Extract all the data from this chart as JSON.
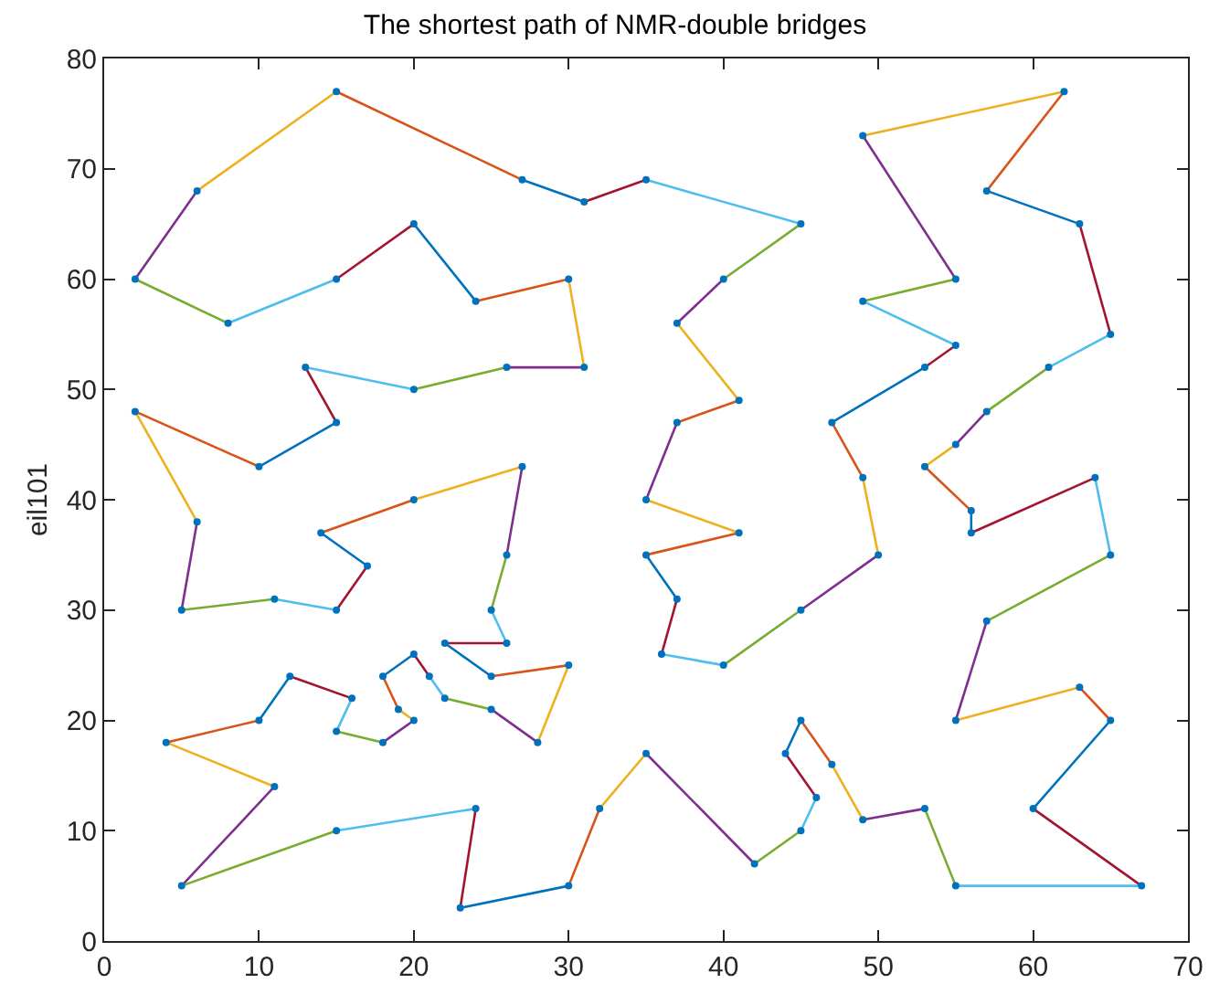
{
  "chart_data": {
    "type": "line",
    "title": "The shortest path of NMR-double bridges",
    "ylabel": "eil101",
    "xlim": [
      0,
      70
    ],
    "xticks": [
      0,
      10,
      20,
      30,
      40,
      50,
      60,
      70
    ],
    "ylim": [
      0,
      80
    ],
    "yticks": [
      0,
      10,
      20,
      30,
      40,
      50,
      60,
      70,
      80
    ],
    "grid": false,
    "line_style": "solid",
    "series": [
      {
        "x": [
          37,
          41
        ],
        "values": [
          47,
          49
        ],
        "color": "#D95319"
      },
      {
        "x": [
          41,
          37
        ],
        "values": [
          49,
          56
        ],
        "color": "#EDB120"
      },
      {
        "x": [
          37,
          40
        ],
        "values": [
          56,
          60
        ],
        "color": "#7E2F8E"
      },
      {
        "x": [
          40,
          45
        ],
        "values": [
          60,
          65
        ],
        "color": "#77AC30"
      },
      {
        "x": [
          45,
          35
        ],
        "values": [
          65,
          69
        ],
        "color": "#4DBEEE"
      },
      {
        "x": [
          35,
          31
        ],
        "values": [
          69,
          67
        ],
        "color": "#A2142F"
      },
      {
        "x": [
          31,
          27
        ],
        "values": [
          67,
          69
        ],
        "color": "#0072BD"
      },
      {
        "x": [
          27,
          15
        ],
        "values": [
          69,
          77
        ],
        "color": "#D95319"
      },
      {
        "x": [
          15,
          6
        ],
        "values": [
          77,
          68
        ],
        "color": "#EDB120"
      },
      {
        "x": [
          6,
          2
        ],
        "values": [
          68,
          60
        ],
        "color": "#7E2F8E"
      },
      {
        "x": [
          2,
          8
        ],
        "values": [
          60,
          56
        ],
        "color": "#77AC30"
      },
      {
        "x": [
          8,
          15
        ],
        "values": [
          56,
          60
        ],
        "color": "#4DBEEE"
      },
      {
        "x": [
          15,
          20
        ],
        "values": [
          60,
          65
        ],
        "color": "#A2142F"
      },
      {
        "x": [
          20,
          24
        ],
        "values": [
          65,
          58
        ],
        "color": "#0072BD"
      },
      {
        "x": [
          24,
          30
        ],
        "values": [
          58,
          60
        ],
        "color": "#D95319"
      },
      {
        "x": [
          30,
          31
        ],
        "values": [
          60,
          52
        ],
        "color": "#EDB120"
      },
      {
        "x": [
          31,
          26
        ],
        "values": [
          52,
          52
        ],
        "color": "#7E2F8E"
      },
      {
        "x": [
          26,
          20
        ],
        "values": [
          52,
          50
        ],
        "color": "#77AC30"
      },
      {
        "x": [
          20,
          13
        ],
        "values": [
          50,
          52
        ],
        "color": "#4DBEEE"
      },
      {
        "x": [
          13,
          15
        ],
        "values": [
          52,
          47
        ],
        "color": "#A2142F"
      },
      {
        "x": [
          15,
          10
        ],
        "values": [
          47,
          43
        ],
        "color": "#0072BD"
      },
      {
        "x": [
          10,
          2
        ],
        "values": [
          43,
          48
        ],
        "color": "#D95319"
      },
      {
        "x": [
          2,
          6
        ],
        "values": [
          48,
          38
        ],
        "color": "#EDB120"
      },
      {
        "x": [
          6,
          5
        ],
        "values": [
          38,
          30
        ],
        "color": "#7E2F8E"
      },
      {
        "x": [
          5,
          11
        ],
        "values": [
          30,
          31
        ],
        "color": "#77AC30"
      },
      {
        "x": [
          11,
          15
        ],
        "values": [
          31,
          30
        ],
        "color": "#4DBEEE"
      },
      {
        "x": [
          15,
          17
        ],
        "values": [
          30,
          34
        ],
        "color": "#A2142F"
      },
      {
        "x": [
          17,
          14
        ],
        "values": [
          34,
          37
        ],
        "color": "#0072BD"
      },
      {
        "x": [
          14,
          20
        ],
        "values": [
          37,
          40
        ],
        "color": "#D95319"
      },
      {
        "x": [
          20,
          27
        ],
        "values": [
          40,
          43
        ],
        "color": "#EDB120"
      },
      {
        "x": [
          27,
          26
        ],
        "values": [
          43,
          35
        ],
        "color": "#7E2F8E"
      },
      {
        "x": [
          26,
          25
        ],
        "values": [
          35,
          30
        ],
        "color": "#77AC30"
      },
      {
        "x": [
          25,
          26
        ],
        "values": [
          30,
          27
        ],
        "color": "#4DBEEE"
      },
      {
        "x": [
          26,
          22
        ],
        "values": [
          27,
          27
        ],
        "color": "#A2142F"
      },
      {
        "x": [
          22,
          25
        ],
        "values": [
          27,
          24
        ],
        "color": "#0072BD"
      },
      {
        "x": [
          25,
          30
        ],
        "values": [
          24,
          25
        ],
        "color": "#D95319"
      },
      {
        "x": [
          30,
          28
        ],
        "values": [
          25,
          18
        ],
        "color": "#EDB120"
      },
      {
        "x": [
          28,
          25
        ],
        "values": [
          18,
          21
        ],
        "color": "#7E2F8E"
      },
      {
        "x": [
          25,
          22
        ],
        "values": [
          21,
          22
        ],
        "color": "#77AC30"
      },
      {
        "x": [
          22,
          21
        ],
        "values": [
          22,
          24
        ],
        "color": "#4DBEEE"
      },
      {
        "x": [
          21,
          20
        ],
        "values": [
          24,
          26
        ],
        "color": "#A2142F"
      },
      {
        "x": [
          20,
          18
        ],
        "values": [
          26,
          24
        ],
        "color": "#0072BD"
      },
      {
        "x": [
          18,
          19
        ],
        "values": [
          24,
          21
        ],
        "color": "#D95319"
      },
      {
        "x": [
          19,
          20
        ],
        "values": [
          21,
          20
        ],
        "color": "#EDB120"
      },
      {
        "x": [
          20,
          18
        ],
        "values": [
          20,
          18
        ],
        "color": "#7E2F8E"
      },
      {
        "x": [
          18,
          15
        ],
        "values": [
          18,
          19
        ],
        "color": "#77AC30"
      },
      {
        "x": [
          15,
          16
        ],
        "values": [
          19,
          22
        ],
        "color": "#4DBEEE"
      },
      {
        "x": [
          16,
          12
        ],
        "values": [
          22,
          24
        ],
        "color": "#A2142F"
      },
      {
        "x": [
          12,
          10
        ],
        "values": [
          24,
          20
        ],
        "color": "#0072BD"
      },
      {
        "x": [
          10,
          4
        ],
        "values": [
          20,
          18
        ],
        "color": "#D95319"
      },
      {
        "x": [
          4,
          11
        ],
        "values": [
          18,
          14
        ],
        "color": "#EDB120"
      },
      {
        "x": [
          11,
          5
        ],
        "values": [
          14,
          5
        ],
        "color": "#7E2F8E"
      },
      {
        "x": [
          5,
          15
        ],
        "values": [
          5,
          10
        ],
        "color": "#77AC30"
      },
      {
        "x": [
          15,
          24
        ],
        "values": [
          10,
          12
        ],
        "color": "#4DBEEE"
      },
      {
        "x": [
          24,
          23
        ],
        "values": [
          12,
          3
        ],
        "color": "#A2142F"
      },
      {
        "x": [
          23,
          30
        ],
        "values": [
          3,
          5
        ],
        "color": "#0072BD"
      },
      {
        "x": [
          30,
          32
        ],
        "values": [
          5,
          12
        ],
        "color": "#D95319"
      },
      {
        "x": [
          32,
          35
        ],
        "values": [
          12,
          17
        ],
        "color": "#EDB120"
      },
      {
        "x": [
          35,
          42
        ],
        "values": [
          17,
          7
        ],
        "color": "#7E2F8E"
      },
      {
        "x": [
          42,
          45
        ],
        "values": [
          7,
          10
        ],
        "color": "#77AC30"
      },
      {
        "x": [
          45,
          46
        ],
        "values": [
          10,
          13
        ],
        "color": "#4DBEEE"
      },
      {
        "x": [
          46,
          44
        ],
        "values": [
          13,
          17
        ],
        "color": "#A2142F"
      },
      {
        "x": [
          44,
          45
        ],
        "values": [
          17,
          20
        ],
        "color": "#0072BD"
      },
      {
        "x": [
          45,
          47
        ],
        "values": [
          20,
          16
        ],
        "color": "#D95319"
      },
      {
        "x": [
          47,
          49
        ],
        "values": [
          16,
          11
        ],
        "color": "#EDB120"
      },
      {
        "x": [
          49,
          53
        ],
        "values": [
          11,
          12
        ],
        "color": "#7E2F8E"
      },
      {
        "x": [
          53,
          55
        ],
        "values": [
          12,
          5
        ],
        "color": "#77AC30"
      },
      {
        "x": [
          55,
          67
        ],
        "values": [
          5,
          5
        ],
        "color": "#4DBEEE"
      },
      {
        "x": [
          67,
          60
        ],
        "values": [
          5,
          12
        ],
        "color": "#A2142F"
      },
      {
        "x": [
          60,
          65
        ],
        "values": [
          12,
          20
        ],
        "color": "#0072BD"
      },
      {
        "x": [
          65,
          63
        ],
        "values": [
          20,
          23
        ],
        "color": "#D95319"
      },
      {
        "x": [
          63,
          55
        ],
        "values": [
          23,
          20
        ],
        "color": "#EDB120"
      },
      {
        "x": [
          55,
          57
        ],
        "values": [
          20,
          29
        ],
        "color": "#7E2F8E"
      },
      {
        "x": [
          57,
          65
        ],
        "values": [
          29,
          35
        ],
        "color": "#77AC30"
      },
      {
        "x": [
          65,
          64
        ],
        "values": [
          35,
          42
        ],
        "color": "#4DBEEE"
      },
      {
        "x": [
          64,
          56
        ],
        "values": [
          42,
          37
        ],
        "color": "#A2142F"
      },
      {
        "x": [
          56,
          56
        ],
        "values": [
          37,
          39
        ],
        "color": "#0072BD"
      },
      {
        "x": [
          56,
          53
        ],
        "values": [
          39,
          43
        ],
        "color": "#D95319"
      },
      {
        "x": [
          53,
          55
        ],
        "values": [
          43,
          45
        ],
        "color": "#EDB120"
      },
      {
        "x": [
          55,
          57
        ],
        "values": [
          45,
          48
        ],
        "color": "#7E2F8E"
      },
      {
        "x": [
          57,
          61
        ],
        "values": [
          48,
          52
        ],
        "color": "#77AC30"
      },
      {
        "x": [
          61,
          65
        ],
        "values": [
          52,
          55
        ],
        "color": "#4DBEEE"
      },
      {
        "x": [
          65,
          63
        ],
        "values": [
          55,
          65
        ],
        "color": "#A2142F"
      },
      {
        "x": [
          63,
          57
        ],
        "values": [
          65,
          68
        ],
        "color": "#0072BD"
      },
      {
        "x": [
          57,
          62
        ],
        "values": [
          68,
          77
        ],
        "color": "#D95319"
      },
      {
        "x": [
          62,
          49
        ],
        "values": [
          77,
          73
        ],
        "color": "#EDB120"
      },
      {
        "x": [
          49,
          55
        ],
        "values": [
          73,
          60
        ],
        "color": "#7E2F8E"
      },
      {
        "x": [
          55,
          49
        ],
        "values": [
          60,
          58
        ],
        "color": "#77AC30"
      },
      {
        "x": [
          49,
          55
        ],
        "values": [
          58,
          54
        ],
        "color": "#4DBEEE"
      },
      {
        "x": [
          55,
          53
        ],
        "values": [
          54,
          52
        ],
        "color": "#A2142F"
      },
      {
        "x": [
          53,
          47
        ],
        "values": [
          52,
          47
        ],
        "color": "#0072BD"
      },
      {
        "x": [
          47,
          49
        ],
        "values": [
          47,
          42
        ],
        "color": "#D95319"
      },
      {
        "x": [
          49,
          50
        ],
        "values": [
          42,
          35
        ],
        "color": "#EDB120"
      },
      {
        "x": [
          50,
          45
        ],
        "values": [
          35,
          30
        ],
        "color": "#7E2F8E"
      },
      {
        "x": [
          45,
          40
        ],
        "values": [
          30,
          25
        ],
        "color": "#77AC30"
      },
      {
        "x": [
          40,
          36
        ],
        "values": [
          25,
          26
        ],
        "color": "#4DBEEE"
      },
      {
        "x": [
          36,
          37
        ],
        "values": [
          26,
          31
        ],
        "color": "#A2142F"
      },
      {
        "x": [
          37,
          35
        ],
        "values": [
          31,
          35
        ],
        "color": "#0072BD"
      },
      {
        "x": [
          35,
          41
        ],
        "values": [
          35,
          37
        ],
        "color": "#D95319"
      },
      {
        "x": [
          41,
          35
        ],
        "values": [
          37,
          40
        ],
        "color": "#EDB120"
      },
      {
        "x": [
          35,
          37
        ],
        "values": [
          40,
          47
        ],
        "color": "#7E2F8E"
      },
      {
        "type": "scatter",
        "marker": "circle",
        "color": "#0072BD",
        "x": [
          37,
          41,
          37,
          40,
          45,
          35,
          31,
          27,
          15,
          6,
          2,
          8,
          15,
          20,
          24,
          30,
          31,
          26,
          20,
          13,
          15,
          10,
          2,
          6,
          5,
          11,
          15,
          17,
          14,
          20,
          27,
          26,
          25,
          26,
          22,
          25,
          30,
          28,
          25,
          22,
          21,
          20,
          18,
          19,
          20,
          18,
          15,
          16,
          12,
          10,
          4,
          11,
          5,
          15,
          24,
          23,
          30,
          32,
          35,
          42,
          45,
          46,
          44,
          45,
          47,
          49,
          53,
          55,
          67,
          60,
          65,
          63,
          55,
          57,
          65,
          64,
          56,
          56,
          53,
          55,
          57,
          61,
          65,
          63,
          57,
          62,
          49,
          55,
          49,
          55,
          53,
          47,
          49,
          50,
          45,
          40,
          36,
          37,
          35,
          41,
          35
        ],
        "values": [
          47,
          49,
          56,
          60,
          65,
          69,
          67,
          69,
          77,
          68,
          60,
          56,
          60,
          65,
          58,
          60,
          52,
          52,
          50,
          52,
          47,
          43,
          48,
          38,
          30,
          31,
          30,
          34,
          37,
          40,
          43,
          35,
          30,
          27,
          27,
          24,
          25,
          18,
          21,
          22,
          24,
          26,
          24,
          21,
          20,
          18,
          19,
          22,
          24,
          20,
          18,
          14,
          5,
          10,
          12,
          3,
          5,
          12,
          17,
          7,
          10,
          13,
          17,
          20,
          16,
          11,
          12,
          5,
          5,
          12,
          20,
          23,
          20,
          29,
          35,
          42,
          37,
          39,
          43,
          45,
          48,
          52,
          55,
          65,
          68,
          77,
          73,
          60,
          58,
          54,
          52,
          47,
          42,
          35,
          30,
          25,
          26,
          31,
          35,
          37,
          40
        ]
      }
    ]
  }
}
